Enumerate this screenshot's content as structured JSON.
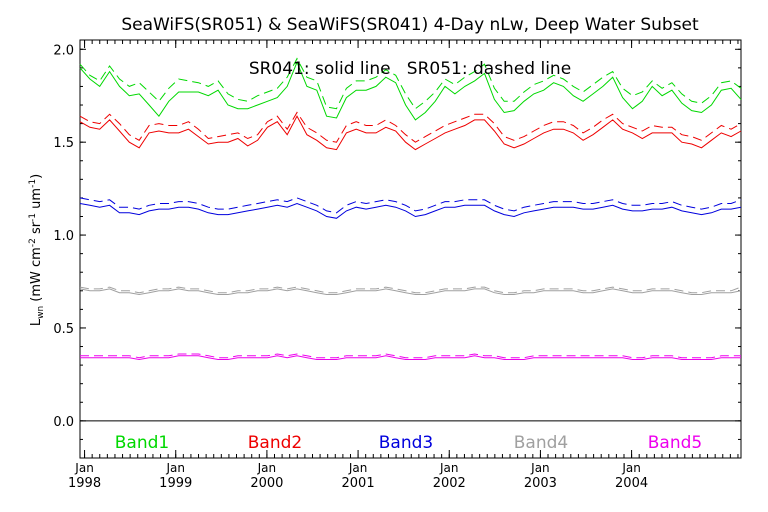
{
  "chart_data": {
    "type": "line",
    "title": "SeaWiFS(SR051) & SeaWiFS(SR041) 4-Day nLw, Deep Water Subset",
    "annotation": "SR041: solid line   SR051: dashed line",
    "ylabel_main": "L",
    "ylabel_sub": "wn",
    "ylabel_units": " (mW cm",
    "ylabel_exp1": "-2",
    "ylabel_mid": " sr",
    "ylabel_exp2": "-1",
    "ylabel_mid2": " um",
    "ylabel_exp3": "-1",
    "ylabel_end": ")",
    "ylim": [
      -0.2,
      2.05
    ],
    "xlim": [
      1997.95,
      2005.2
    ],
    "y_ticks": [
      "0.0",
      "0.5",
      "1.0",
      "1.5",
      "2.0"
    ],
    "x_ticks": [
      {
        "month": "Jan",
        "year": "1998"
      },
      {
        "month": "Jan",
        "year": "1999"
      },
      {
        "month": "Jan",
        "year": "2000"
      },
      {
        "month": "Jan",
        "year": "2001"
      },
      {
        "month": "Jan",
        "year": "2002"
      },
      {
        "month": "Jan",
        "year": "2003"
      },
      {
        "month": "Jan",
        "year": "2004"
      }
    ],
    "legend_placement": "bottom, inside plot",
    "series": [
      {
        "name": "Band1",
        "color": "#00d800",
        "solid": [
          1.9,
          1.84,
          1.8,
          1.88,
          1.8,
          1.75,
          1.76,
          1.7,
          1.64,
          1.72,
          1.77,
          1.77,
          1.77,
          1.75,
          1.78,
          1.7,
          1.68,
          1.68,
          1.7,
          1.72,
          1.74,
          1.8,
          1.93,
          1.8,
          1.78,
          1.64,
          1.63,
          1.74,
          1.78,
          1.78,
          1.8,
          1.85,
          1.82,
          1.7,
          1.62,
          1.66,
          1.72,
          1.8,
          1.76,
          1.8,
          1.83,
          1.87,
          1.73,
          1.66,
          1.67,
          1.72,
          1.76,
          1.78,
          1.82,
          1.8,
          1.75,
          1.72,
          1.76,
          1.8,
          1.85,
          1.74,
          1.68,
          1.72,
          1.8,
          1.75,
          1.78,
          1.71,
          1.67,
          1.66,
          1.7,
          1.78,
          1.79,
          1.73
        ],
        "dashed": [
          1.92,
          1.86,
          1.83,
          1.91,
          1.84,
          1.8,
          1.82,
          1.77,
          1.72,
          1.79,
          1.84,
          1.83,
          1.82,
          1.8,
          1.83,
          1.76,
          1.73,
          1.72,
          1.75,
          1.77,
          1.79,
          1.85,
          1.95,
          1.85,
          1.83,
          1.69,
          1.68,
          1.79,
          1.83,
          1.83,
          1.85,
          1.89,
          1.86,
          1.76,
          1.68,
          1.72,
          1.77,
          1.84,
          1.81,
          1.85,
          1.88,
          1.92,
          1.79,
          1.72,
          1.72,
          1.77,
          1.81,
          1.83,
          1.86,
          1.84,
          1.8,
          1.77,
          1.81,
          1.85,
          1.88,
          1.79,
          1.75,
          1.77,
          1.83,
          1.79,
          1.82,
          1.76,
          1.72,
          1.71,
          1.75,
          1.82,
          1.83,
          1.79
        ]
      },
      {
        "name": "Band2",
        "color": "#ee0000",
        "solid": [
          1.61,
          1.58,
          1.57,
          1.62,
          1.56,
          1.5,
          1.47,
          1.55,
          1.56,
          1.55,
          1.55,
          1.57,
          1.53,
          1.49,
          1.5,
          1.5,
          1.52,
          1.48,
          1.51,
          1.58,
          1.61,
          1.54,
          1.64,
          1.54,
          1.51,
          1.47,
          1.46,
          1.55,
          1.57,
          1.55,
          1.55,
          1.58,
          1.56,
          1.5,
          1.46,
          1.49,
          1.52,
          1.55,
          1.57,
          1.59,
          1.62,
          1.62,
          1.56,
          1.49,
          1.47,
          1.49,
          1.52,
          1.55,
          1.57,
          1.57,
          1.55,
          1.51,
          1.54,
          1.58,
          1.62,
          1.57,
          1.55,
          1.52,
          1.55,
          1.55,
          1.55,
          1.5,
          1.49,
          1.47,
          1.51,
          1.55,
          1.53,
          1.56
        ],
        "dashed": [
          1.64,
          1.61,
          1.6,
          1.65,
          1.6,
          1.54,
          1.51,
          1.59,
          1.6,
          1.59,
          1.59,
          1.61,
          1.57,
          1.52,
          1.53,
          1.54,
          1.55,
          1.52,
          1.54,
          1.61,
          1.64,
          1.57,
          1.66,
          1.58,
          1.55,
          1.51,
          1.5,
          1.59,
          1.61,
          1.59,
          1.59,
          1.62,
          1.59,
          1.54,
          1.5,
          1.53,
          1.56,
          1.59,
          1.61,
          1.63,
          1.65,
          1.65,
          1.6,
          1.53,
          1.51,
          1.53,
          1.56,
          1.59,
          1.61,
          1.61,
          1.59,
          1.55,
          1.58,
          1.62,
          1.65,
          1.6,
          1.58,
          1.56,
          1.59,
          1.58,
          1.58,
          1.54,
          1.53,
          1.51,
          1.55,
          1.59,
          1.57,
          1.6
        ]
      },
      {
        "name": "Band3",
        "color": "#0000dd",
        "solid": [
          1.17,
          1.16,
          1.15,
          1.16,
          1.12,
          1.12,
          1.11,
          1.13,
          1.14,
          1.14,
          1.15,
          1.15,
          1.14,
          1.12,
          1.11,
          1.11,
          1.12,
          1.13,
          1.14,
          1.15,
          1.16,
          1.15,
          1.17,
          1.15,
          1.13,
          1.1,
          1.09,
          1.13,
          1.15,
          1.14,
          1.15,
          1.16,
          1.15,
          1.13,
          1.1,
          1.11,
          1.13,
          1.15,
          1.15,
          1.16,
          1.16,
          1.16,
          1.13,
          1.11,
          1.1,
          1.12,
          1.13,
          1.14,
          1.15,
          1.15,
          1.15,
          1.14,
          1.14,
          1.15,
          1.16,
          1.14,
          1.13,
          1.13,
          1.14,
          1.14,
          1.15,
          1.13,
          1.12,
          1.11,
          1.12,
          1.14,
          1.14,
          1.15
        ],
        "dashed": [
          1.2,
          1.19,
          1.18,
          1.19,
          1.15,
          1.15,
          1.14,
          1.16,
          1.17,
          1.17,
          1.18,
          1.18,
          1.17,
          1.15,
          1.14,
          1.14,
          1.15,
          1.16,
          1.17,
          1.18,
          1.19,
          1.18,
          1.2,
          1.18,
          1.16,
          1.13,
          1.12,
          1.16,
          1.18,
          1.17,
          1.18,
          1.19,
          1.18,
          1.16,
          1.13,
          1.14,
          1.16,
          1.18,
          1.18,
          1.19,
          1.19,
          1.19,
          1.16,
          1.14,
          1.13,
          1.15,
          1.16,
          1.17,
          1.18,
          1.18,
          1.18,
          1.17,
          1.17,
          1.18,
          1.19,
          1.17,
          1.16,
          1.16,
          1.17,
          1.17,
          1.18,
          1.16,
          1.15,
          1.14,
          1.15,
          1.17,
          1.17,
          1.19
        ]
      },
      {
        "name": "Band4",
        "color": "#a0a0a0",
        "solid": [
          0.71,
          0.7,
          0.7,
          0.71,
          0.69,
          0.69,
          0.68,
          0.69,
          0.7,
          0.7,
          0.71,
          0.7,
          0.7,
          0.69,
          0.68,
          0.68,
          0.69,
          0.69,
          0.7,
          0.7,
          0.71,
          0.7,
          0.71,
          0.7,
          0.69,
          0.68,
          0.68,
          0.69,
          0.7,
          0.7,
          0.7,
          0.71,
          0.7,
          0.69,
          0.68,
          0.68,
          0.69,
          0.7,
          0.7,
          0.7,
          0.71,
          0.71,
          0.69,
          0.68,
          0.68,
          0.69,
          0.69,
          0.7,
          0.7,
          0.7,
          0.7,
          0.69,
          0.69,
          0.7,
          0.71,
          0.7,
          0.69,
          0.69,
          0.7,
          0.7,
          0.7,
          0.69,
          0.68,
          0.68,
          0.69,
          0.69,
          0.69,
          0.7
        ],
        "dashed": [
          0.72,
          0.71,
          0.71,
          0.72,
          0.7,
          0.7,
          0.69,
          0.7,
          0.71,
          0.71,
          0.72,
          0.71,
          0.71,
          0.7,
          0.69,
          0.69,
          0.7,
          0.7,
          0.71,
          0.71,
          0.72,
          0.71,
          0.72,
          0.71,
          0.7,
          0.69,
          0.69,
          0.7,
          0.71,
          0.71,
          0.71,
          0.72,
          0.71,
          0.7,
          0.69,
          0.69,
          0.7,
          0.71,
          0.71,
          0.71,
          0.72,
          0.72,
          0.7,
          0.69,
          0.69,
          0.7,
          0.7,
          0.71,
          0.71,
          0.71,
          0.71,
          0.7,
          0.7,
          0.71,
          0.72,
          0.71,
          0.7,
          0.7,
          0.71,
          0.71,
          0.71,
          0.7,
          0.69,
          0.69,
          0.7,
          0.7,
          0.7,
          0.72
        ]
      },
      {
        "name": "Band5",
        "color": "#ee00ee",
        "solid": [
          0.34,
          0.34,
          0.34,
          0.34,
          0.34,
          0.34,
          0.33,
          0.34,
          0.34,
          0.34,
          0.35,
          0.35,
          0.35,
          0.34,
          0.33,
          0.33,
          0.34,
          0.34,
          0.34,
          0.34,
          0.35,
          0.34,
          0.35,
          0.34,
          0.33,
          0.33,
          0.33,
          0.34,
          0.34,
          0.34,
          0.34,
          0.35,
          0.34,
          0.33,
          0.33,
          0.33,
          0.34,
          0.34,
          0.34,
          0.34,
          0.35,
          0.34,
          0.34,
          0.33,
          0.33,
          0.33,
          0.34,
          0.34,
          0.34,
          0.34,
          0.34,
          0.34,
          0.34,
          0.34,
          0.34,
          0.34,
          0.33,
          0.33,
          0.34,
          0.34,
          0.34,
          0.33,
          0.33,
          0.33,
          0.33,
          0.34,
          0.34,
          0.34
        ],
        "dashed": [
          0.35,
          0.35,
          0.35,
          0.35,
          0.35,
          0.35,
          0.34,
          0.35,
          0.35,
          0.35,
          0.36,
          0.36,
          0.36,
          0.35,
          0.34,
          0.34,
          0.35,
          0.35,
          0.35,
          0.35,
          0.36,
          0.35,
          0.36,
          0.35,
          0.34,
          0.34,
          0.34,
          0.35,
          0.35,
          0.35,
          0.35,
          0.36,
          0.35,
          0.34,
          0.34,
          0.34,
          0.35,
          0.35,
          0.35,
          0.35,
          0.36,
          0.35,
          0.35,
          0.34,
          0.34,
          0.34,
          0.35,
          0.35,
          0.35,
          0.35,
          0.35,
          0.35,
          0.35,
          0.35,
          0.35,
          0.35,
          0.34,
          0.34,
          0.35,
          0.35,
          0.35,
          0.34,
          0.34,
          0.34,
          0.34,
          0.35,
          0.35,
          0.35
        ]
      }
    ],
    "x_start": 1997.95,
    "x_end": 2005.2
  }
}
